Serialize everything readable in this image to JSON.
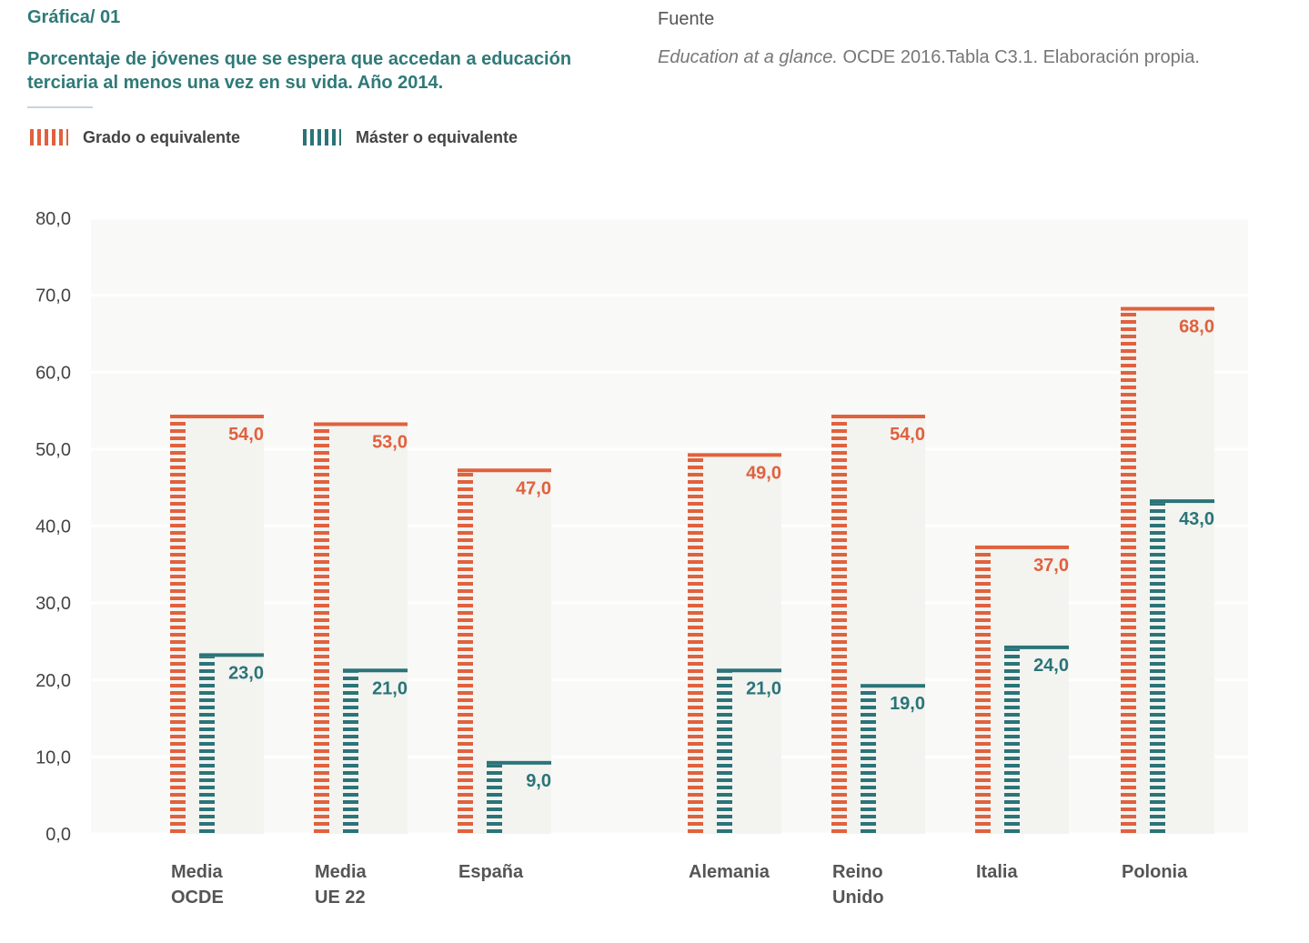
{
  "header": {
    "kicker": "Gráfica/ 01",
    "title": "Porcentaje de jóvenes que se espera que accedan a educación terciaria al menos una vez en su vida. Año 2014.",
    "source_label": "Fuente",
    "source_italic": "Education at a glance.",
    "source_rest": " OCDE 2016.Tabla C3.1. Elaboración propia."
  },
  "colors": {
    "grado": "#e0613d",
    "master": "#2a7478",
    "plot_background": "#f9f9f7",
    "group_background": "#f3f3f0"
  },
  "chart_data": {
    "type": "bar",
    "title": "Porcentaje de jóvenes que se espera que accedan a educación terciaria al menos una vez en su vida. Año 2014.",
    "categories": [
      [
        "Media",
        "OCDE"
      ],
      [
        "Media",
        "UE 22"
      ],
      [
        "España"
      ],
      [
        "Alemania"
      ],
      [
        "Reino",
        "Unido"
      ],
      [
        "Italia"
      ],
      [
        "Polonia"
      ]
    ],
    "series": [
      {
        "name": "Grado o equivalente",
        "values": [
          54.0,
          53.0,
          47.0,
          49.0,
          54.0,
          37.0,
          68.0
        ]
      },
      {
        "name": "Máster o equivalente",
        "values": [
          23.0,
          21.0,
          9.0,
          21.0,
          19.0,
          24.0,
          43.0
        ]
      }
    ],
    "value_labels": [
      [
        "54,0",
        "53,0",
        "47,0",
        "49,0",
        "54,0",
        "37,0",
        "68,0"
      ],
      [
        "23,0",
        "21,0",
        "9,0",
        "21,0",
        "19,0",
        "24,0",
        "43,0"
      ]
    ],
    "ylim": [
      0,
      80
    ],
    "yticks": [
      "0,0",
      "10,0",
      "20,0",
      "30,0",
      "40,0",
      "50,0",
      "60,0",
      "70,0",
      "80,0"
    ],
    "xlabel": "",
    "ylabel": "",
    "grid": true,
    "legend_position": "top-left"
  }
}
